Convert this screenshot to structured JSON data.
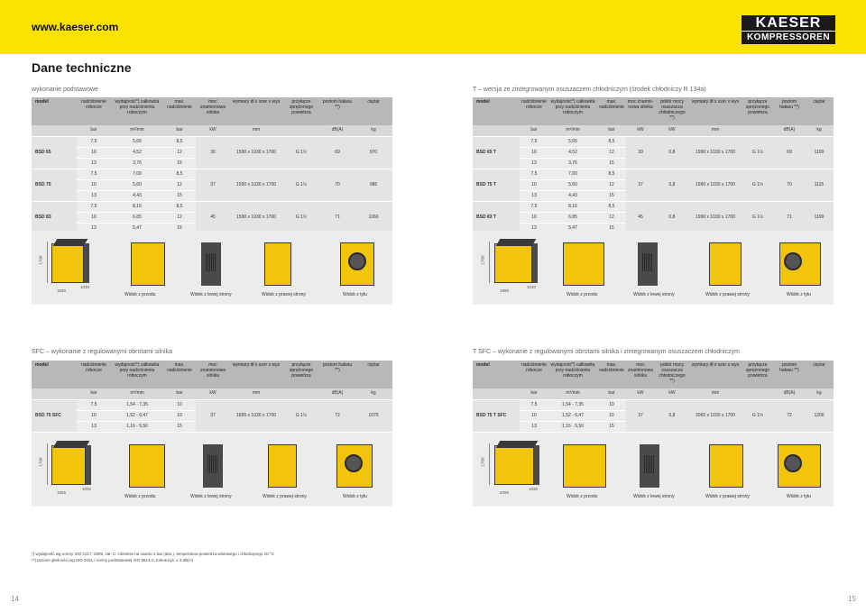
{
  "header": {
    "url": "www.kaeser.com",
    "logo_line1": "KAESER",
    "logo_line2": "KOMPRESSOREN"
  },
  "page_title": "Dane techniczne",
  "sections": {
    "basic": "wykonanie podstawowe",
    "t": "T – wersja ze zintegrowanym osuszaczem chłodniczym (środek chłodniczy R 134a)",
    "sfc": "SFC – wykonanie z regulowanymi obrotami silnika",
    "tsfc": "T SFC – wykonanie z regulowanymi obrotami silnika i zintegrowanym osuszaczem chłodniczym"
  },
  "col_headers": {
    "model": "model",
    "pressure": "nadciśnienie robocze",
    "flow": "wydajność*) całkowita przy nadciśnieniu roboczym",
    "maxp": "max. nadciśnienie",
    "power": "moc znamionowa silnika",
    "power_t": "moc znamio-nowa silnika",
    "power_sfc": "moc znamionowa silnika",
    "dryer": "pobór mocy osuszacza chłodniczego **)",
    "dims": "wymiary dł x szer x wys",
    "conn": "przyłącze sprężonego powietrza",
    "noise": "poziom hałasu **)",
    "noise_sfc": "poziom hałasu **)",
    "weight": "ciężar"
  },
  "units": {
    "bar": "bar",
    "flow": "m³/min",
    "kw": "kW",
    "mm": "mm",
    "db": "dB(A)",
    "kg": "kg"
  },
  "basic_rows": [
    {
      "model": "BSD 65",
      "p": [
        "7,5",
        "10",
        "13"
      ],
      "f": [
        "5,65",
        "4,52",
        "3,76"
      ],
      "m": [
        "8,5",
        "12",
        "15"
      ],
      "kw": "30",
      "dims": "1590 x 1030 x 1700",
      "conn": "G 1½",
      "db": "69",
      "kg": "970"
    },
    {
      "model": "BSD 75",
      "p": [
        "7,5",
        "10",
        "13"
      ],
      "f": [
        "7,00",
        "5,60",
        "4,43"
      ],
      "m": [
        "8,5",
        "12",
        "15"
      ],
      "kw": "37",
      "dims": "1590 x 1030 x 1700",
      "conn": "G 1½",
      "db": "70",
      "kg": "985"
    },
    {
      "model": "BSD 83",
      "p": [
        "7,5",
        "10",
        "13"
      ],
      "f": [
        "8,16",
        "6,85",
        "5,47"
      ],
      "m": [
        "8,5",
        "12",
        "15"
      ],
      "kw": "45",
      "dims": "1590 x 1030 x 1700",
      "conn": "G 1½",
      "db": "71",
      "kg": "1060"
    }
  ],
  "t_rows": [
    {
      "model": "BSD 65 T",
      "p": [
        "7,5",
        "10",
        "13"
      ],
      "f": [
        "5,65",
        "4,52",
        "3,76"
      ],
      "m": [
        "8,5",
        "12",
        "15"
      ],
      "kw": "30",
      "dryer": "0,8",
      "dims": "1990 x 1030 x 1700",
      "conn": "G 1½",
      "db": "69",
      "kg": "1100"
    },
    {
      "model": "BSD 75 T",
      "p": [
        "7,5",
        "10",
        "13"
      ],
      "f": [
        "7,00",
        "5,60",
        "4,43"
      ],
      "m": [
        "8,5",
        "12",
        "15"
      ],
      "kw": "37",
      "dryer": "0,8",
      "dims": "1990 x 1030 x 1700",
      "conn": "G 1½",
      "db": "70",
      "kg": "1115"
    },
    {
      "model": "BSD 83 T",
      "p": [
        "7,5",
        "10",
        "13"
      ],
      "f": [
        "8,16",
        "6,85",
        "5,47"
      ],
      "m": [
        "8,5",
        "12",
        "15"
      ],
      "kw": "45",
      "dryer": "0,8",
      "dims": "1990 x 1030 x 1700",
      "conn": "G 1½",
      "db": "71",
      "kg": "1190"
    }
  ],
  "sfc_rows": [
    {
      "model": "BSD 75 SFC",
      "p": [
        "7,5",
        "10",
        "13"
      ],
      "f": [
        "1,54 - 7,35",
        "1,52 - 6,47",
        "1,16 - 5,50"
      ],
      "m": [
        "10",
        "10",
        "15"
      ],
      "kw": "37",
      "dims": "1665 x 1030 x 1700",
      "conn": "G 1½",
      "db": "72",
      "kg": "1070"
    }
  ],
  "tsfc_rows": [
    {
      "model": "BSD 75 T SFC",
      "p": [
        "7,5",
        "10",
        "13"
      ],
      "f": [
        "1,54 - 7,35",
        "1,52 - 6,47",
        "1,16 - 5,50"
      ],
      "m": [
        "10",
        "10",
        "15"
      ],
      "kw": "37",
      "dryer": "0,8",
      "dims": "2065 x 1030 x 1700",
      "conn": "G 1½",
      "db": "72",
      "kg": "1200"
    }
  ],
  "dims_labels": {
    "h": "1700",
    "d": "1030",
    "w_basic": "1590",
    "w_t": "1990",
    "w_sfc": "1665",
    "w_tsfc": "2065"
  },
  "views": {
    "front": "Widok z przodu",
    "left": "Widok z lewej strony",
    "right": "Widok z prawej strony",
    "back": "Widok z tyłu"
  },
  "footnotes": [
    "*) wydajność wg normy ISO 1217: 2009, zał. C: ciśnienie na ssaniu 1 bar (abs.), temperatura powietrza wlotowego i chłodzącego 20 °C",
    "**) poziom głośności wg ISO 2151 i normy podstawowej ISO 9614-2, tolerancja: ± 3 dB(A)"
  ],
  "page_numbers": {
    "left": "14",
    "right": "15"
  },
  "colors": {
    "brand_yellow": "#fbe200",
    "machine_yellow": "#f3c40c",
    "header_gray": "#b8b8b8"
  }
}
